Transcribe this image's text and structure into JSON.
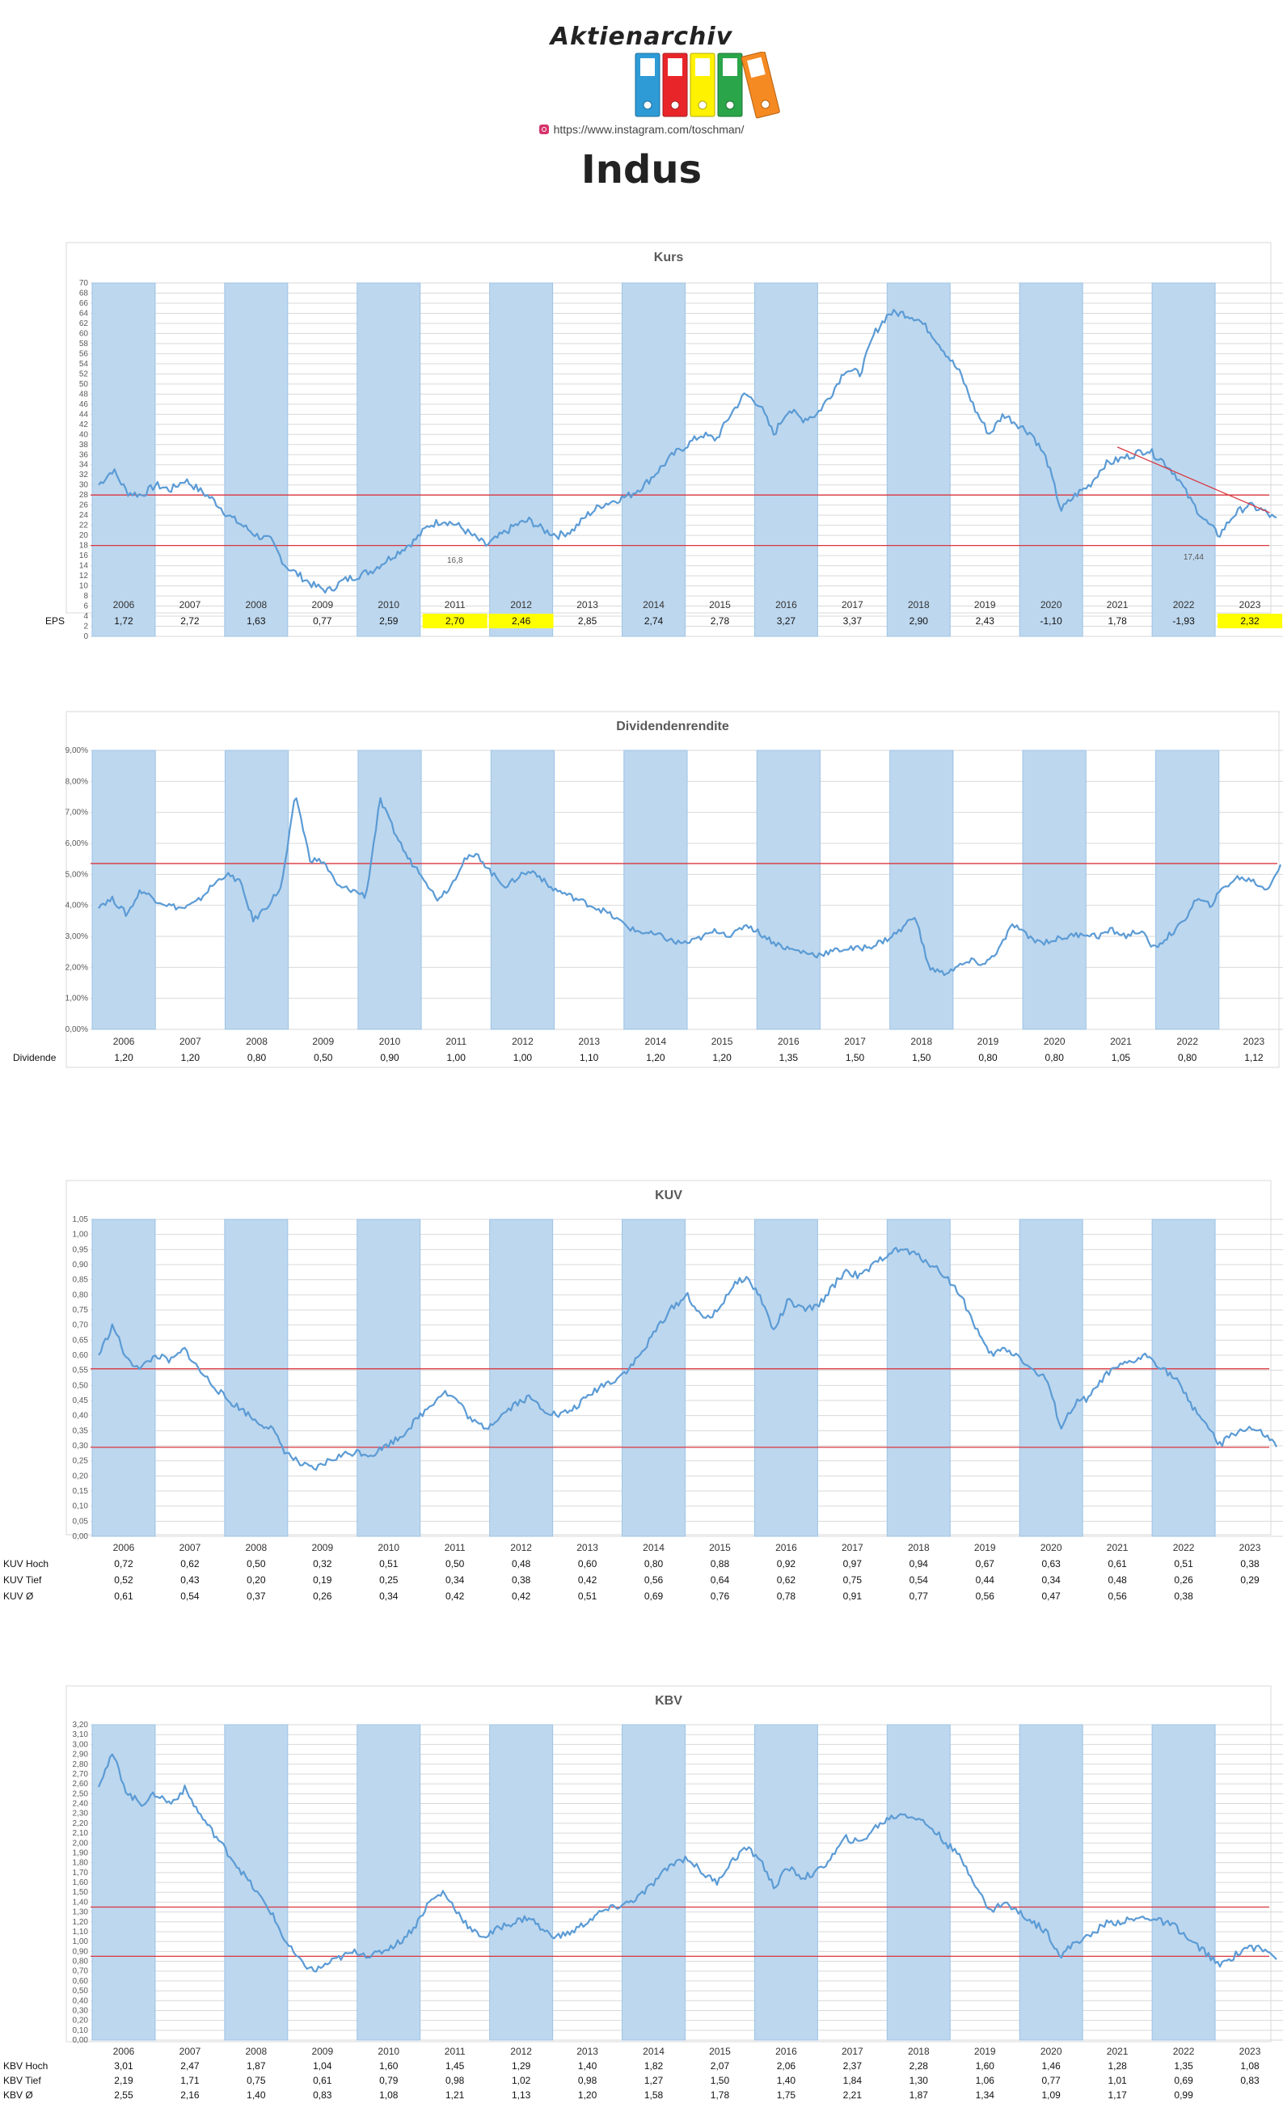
{
  "header": {
    "brand": "Aktienarchiv",
    "instagram": "https://www.instagram.com/toschman/",
    "company": "Indus"
  },
  "colors": {
    "band": "#bdd7ee",
    "band_stroke": "#9dc3e6",
    "line": "#5b9bd5",
    "ref": "#d9363e",
    "highlight": "#ffff00",
    "binders": [
      "#2e9bd6",
      "#e8262a",
      "#fff200",
      "#2aa54a",
      "#f58a22"
    ]
  },
  "chart_data": [
    {
      "type": "line",
      "title": "Kurs",
      "x": [
        2006,
        2007,
        2008,
        2009,
        2010,
        2011,
        2012,
        2013,
        2014,
        2015,
        2016,
        2017,
        2018,
        2019,
        2020,
        2021,
        2022,
        2023
      ],
      "shaded_years": [
        2006,
        2008,
        2010,
        2012,
        2014,
        2016,
        2018,
        2020,
        2022
      ],
      "ylim": [
        0,
        70
      ],
      "ytick_step": 2,
      "ytick_decimals": 0,
      "grid": true,
      "series_values": [
        30,
        33,
        28.5,
        28,
        30,
        29,
        31,
        29,
        27,
        24,
        22,
        20,
        19,
        14,
        12,
        10,
        9,
        11,
        12,
        13,
        15,
        17,
        19,
        22,
        23,
        22,
        20,
        18,
        20,
        22,
        23,
        21,
        20,
        21,
        24,
        26,
        27,
        28,
        30,
        33,
        36,
        38,
        40,
        39,
        44,
        48,
        46,
        40,
        45,
        43,
        44,
        48,
        53,
        52,
        60,
        64,
        64,
        63,
        60,
        56,
        52,
        45,
        40,
        44,
        42,
        40,
        35,
        25,
        28,
        30,
        34,
        35,
        36,
        37,
        35,
        32,
        27,
        23,
        20,
        24,
        26,
        25,
        23
      ],
      "ref_lines": [
        28,
        18
      ],
      "trend_line": [
        [
          2021.0,
          37.5
        ],
        [
          2023.3,
          24.5
        ]
      ],
      "annotations": [
        {
          "x": 2011,
          "y": 16.8,
          "text": "16,8"
        },
        {
          "x": 2022.15,
          "y": 17.44,
          "text": "17,44"
        }
      ],
      "rows": [
        {
          "label": "EPS",
          "values": [
            "1,72",
            "2,72",
            "1,63",
            "0,77",
            "2,59",
            "2,70",
            "2,46",
            "2,85",
            "2,74",
            "2,78",
            "3,27",
            "3,37",
            "2,90",
            "2,43",
            "-1,10",
            "1,78",
            "-1,93",
            "2,32"
          ],
          "highlight": [
            2011,
            2012,
            2023
          ]
        }
      ]
    },
    {
      "type": "line",
      "title": "Dividendenrendite",
      "x": [
        2006,
        2007,
        2008,
        2009,
        2010,
        2011,
        2012,
        2013,
        2014,
        2015,
        2016,
        2017,
        2018,
        2019,
        2020,
        2021,
        2022,
        2023
      ],
      "shaded_years": [
        2006,
        2008,
        2010,
        2012,
        2014,
        2016,
        2018,
        2020,
        2022
      ],
      "ylim": [
        0,
        9
      ],
      "ytick_step": 1,
      "ytick_suffix": "%",
      "ytick_decimals": 2,
      "grid": true,
      "series_values": [
        4.0,
        4.2,
        3.7,
        4.5,
        4.2,
        4.0,
        3.9,
        4.1,
        4.6,
        5.0,
        4.8,
        3.5,
        4.0,
        4.6,
        7.6,
        5.5,
        5.4,
        4.6,
        4.5,
        4.3,
        7.4,
        6.4,
        5.5,
        5.0,
        4.2,
        4.6,
        5.5,
        5.6,
        5.0,
        4.6,
        5.0,
        5.1,
        4.6,
        4.4,
        4.2,
        4.0,
        3.8,
        3.5,
        3.2,
        3.1,
        3.0,
        2.8,
        2.8,
        3.0,
        3.2,
        3.0,
        3.4,
        3.1,
        2.8,
        2.6,
        2.5,
        2.4,
        2.5,
        2.6,
        2.6,
        2.7,
        2.9,
        3.2,
        3.7,
        2.0,
        1.8,
        2.0,
        2.2,
        2.1,
        2.6,
        3.4,
        3.0,
        2.8,
        2.9,
        3.0,
        3.1,
        3.0,
        3.2,
        3.0,
        3.2,
        2.6,
        3.0,
        3.4,
        4.2,
        4.0,
        4.6,
        4.9,
        4.8,
        4.5,
        5.3
      ],
      "ref_lines": [
        5.35
      ],
      "rows": [
        {
          "label": "Dividende",
          "values": [
            "1,20",
            "1,20",
            "0,80",
            "0,50",
            "0,90",
            "1,00",
            "1,00",
            "1,10",
            "1,20",
            "1,20",
            "1,35",
            "1,50",
            "1,50",
            "0,80",
            "0,80",
            "1,05",
            "0,80",
            "1,12"
          ]
        }
      ]
    },
    {
      "type": "line",
      "title": "KUV",
      "x": [
        2006,
        2007,
        2008,
        2009,
        2010,
        2011,
        2012,
        2013,
        2014,
        2015,
        2016,
        2017,
        2018,
        2019,
        2020,
        2021,
        2022,
        2023
      ],
      "shaded_years": [
        2006,
        2008,
        2010,
        2012,
        2014,
        2016,
        2018,
        2020,
        2022
      ],
      "ylim": [
        0,
        1.05
      ],
      "ytick_step": 0.05,
      "ytick_decimals": 2,
      "grid": true,
      "series_values": [
        0.6,
        0.7,
        0.58,
        0.56,
        0.6,
        0.58,
        0.62,
        0.55,
        0.5,
        0.45,
        0.42,
        0.38,
        0.36,
        0.28,
        0.24,
        0.22,
        0.25,
        0.27,
        0.28,
        0.27,
        0.3,
        0.33,
        0.38,
        0.43,
        0.48,
        0.45,
        0.38,
        0.36,
        0.4,
        0.44,
        0.46,
        0.42,
        0.4,
        0.42,
        0.46,
        0.5,
        0.52,
        0.56,
        0.62,
        0.7,
        0.76,
        0.8,
        0.72,
        0.74,
        0.82,
        0.86,
        0.8,
        0.68,
        0.78,
        0.75,
        0.76,
        0.82,
        0.88,
        0.86,
        0.9,
        0.94,
        0.95,
        0.93,
        0.9,
        0.86,
        0.8,
        0.7,
        0.6,
        0.62,
        0.6,
        0.55,
        0.52,
        0.36,
        0.44,
        0.46,
        0.53,
        0.56,
        0.58,
        0.6,
        0.56,
        0.52,
        0.44,
        0.38,
        0.3,
        0.34,
        0.36,
        0.34,
        0.3
      ],
      "ref_lines": [
        0.555,
        0.295
      ],
      "rows": [
        {
          "label": "KUV Hoch",
          "values": [
            "0,72",
            "0,62",
            "0,50",
            "0,32",
            "0,51",
            "0,50",
            "0,48",
            "0,60",
            "0,80",
            "0,88",
            "0,92",
            "0,97",
            "0,94",
            "0,67",
            "0,63",
            "0,61",
            "0,51",
            "0,38"
          ]
        },
        {
          "label": "KUV  Tief",
          "values": [
            "0,52",
            "0,43",
            "0,20",
            "0,19",
            "0,25",
            "0,34",
            "0,38",
            "0,42",
            "0,56",
            "0,64",
            "0,62",
            "0,75",
            "0,54",
            "0,44",
            "0,34",
            "0,48",
            "0,26",
            "0,29"
          ]
        },
        {
          "label": "KUV Ø",
          "values": [
            "0,61",
            "0,54",
            "0,37",
            "0,26",
            "0,34",
            "0,42",
            "0,42",
            "0,51",
            "0,69",
            "0,76",
            "0,78",
            "0,91",
            "0,77",
            "0,56",
            "0,47",
            "0,56",
            "0,38",
            ""
          ]
        }
      ]
    },
    {
      "type": "line",
      "title": "KBV",
      "x": [
        2006,
        2007,
        2008,
        2009,
        2010,
        2011,
        2012,
        2013,
        2014,
        2015,
        2016,
        2017,
        2018,
        2019,
        2020,
        2021,
        2022,
        2023
      ],
      "shaded_years": [
        2006,
        2008,
        2010,
        2012,
        2014,
        2016,
        2018,
        2020,
        2022
      ],
      "ylim": [
        0,
        3.2
      ],
      "ytick_step": 0.1,
      "ytick_decimals": 2,
      "grid": true,
      "series_values": [
        2.6,
        2.9,
        2.5,
        2.4,
        2.5,
        2.4,
        2.55,
        2.3,
        2.1,
        1.9,
        1.7,
        1.5,
        1.3,
        1.0,
        0.8,
        0.7,
        0.78,
        0.85,
        0.9,
        0.85,
        0.92,
        1.0,
        1.15,
        1.4,
        1.5,
        1.3,
        1.1,
        1.05,
        1.15,
        1.2,
        1.25,
        1.1,
        1.05,
        1.1,
        1.2,
        1.3,
        1.35,
        1.4,
        1.5,
        1.65,
        1.8,
        1.85,
        1.7,
        1.6,
        1.8,
        1.95,
        1.85,
        1.55,
        1.75,
        1.65,
        1.7,
        1.85,
        2.05,
        2.0,
        2.15,
        2.25,
        2.3,
        2.25,
        2.15,
        2.0,
        1.85,
        1.6,
        1.3,
        1.4,
        1.3,
        1.2,
        1.1,
        0.85,
        1.0,
        1.05,
        1.18,
        1.2,
        1.22,
        1.25,
        1.2,
        1.15,
        1.0,
        0.9,
        0.75,
        0.85,
        0.95,
        0.92,
        0.85
      ],
      "ref_lines": [
        1.35,
        0.85
      ],
      "rows": [
        {
          "label": "KBV Hoch",
          "values": [
            "3,01",
            "2,47",
            "1,87",
            "1,04",
            "1,60",
            "1,45",
            "1,29",
            "1,40",
            "1,82",
            "2,07",
            "2,06",
            "2,37",
            "2,28",
            "1,60",
            "1,46",
            "1,28",
            "1,35",
            "1,08"
          ]
        },
        {
          "label": "KBV  Tief",
          "values": [
            "2,19",
            "1,71",
            "0,75",
            "0,61",
            "0,79",
            "0,98",
            "1,02",
            "0,98",
            "1,27",
            "1,50",
            "1,40",
            "1,84",
            "1,30",
            "1,06",
            "0,77",
            "1,01",
            "0,69",
            "0,83"
          ]
        },
        {
          "label": "KBV Ø",
          "values": [
            "2,55",
            "2,16",
            "1,40",
            "0,83",
            "1,08",
            "1,21",
            "1,13",
            "1,20",
            "1,58",
            "1,78",
            "1,75",
            "2,21",
            "1,87",
            "1,34",
            "1,09",
            "1,17",
            "0,99",
            ""
          ]
        }
      ]
    }
  ]
}
